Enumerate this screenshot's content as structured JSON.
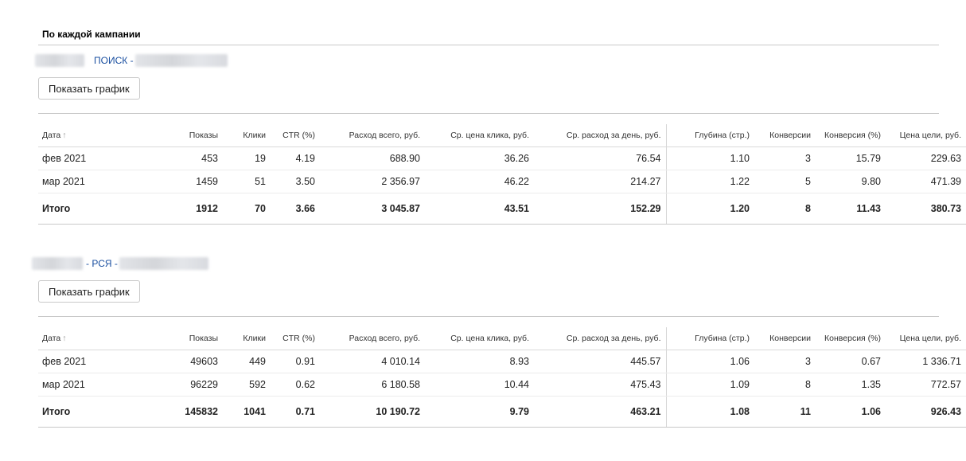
{
  "section_title": "По каждой кампании",
  "columns": [
    "Дата",
    "Показы",
    "Клики",
    "CTR (%)",
    "Расход всего, руб.",
    "Ср. цена клика, руб.",
    "Ср. расход за день, руб.",
    "Глубина (стр.)",
    "Конверсии",
    "Конверсия (%)",
    "Цена цели, руб."
  ],
  "sort_arrow": "↑",
  "show_chart_label": "Показать график",
  "campaigns": [
    {
      "name_prefix": "ПОИСК -",
      "rows": [
        [
          "фев 2021",
          "453",
          "19",
          "4.19",
          "688.90",
          "36.26",
          "76.54",
          "1.10",
          "3",
          "15.79",
          "229.63"
        ],
        [
          "мар 2021",
          "1459",
          "51",
          "3.50",
          "2 356.97",
          "46.22",
          "214.27",
          "1.22",
          "5",
          "9.80",
          "471.39"
        ]
      ],
      "total": [
        "Итого",
        "1912",
        "70",
        "3.66",
        "3 045.87",
        "43.51",
        "152.29",
        "1.20",
        "8",
        "11.43",
        "380.73"
      ]
    },
    {
      "name_prefix": "- РСЯ -",
      "rows": [
        [
          "фев 2021",
          "49603",
          "449",
          "0.91",
          "4 010.14",
          "8.93",
          "445.57",
          "1.06",
          "3",
          "0.67",
          "1 336.71"
        ],
        [
          "мар 2021",
          "96229",
          "592",
          "0.62",
          "6 180.58",
          "10.44",
          "475.43",
          "1.09",
          "8",
          "1.35",
          "772.57"
        ]
      ],
      "total": [
        "Итого",
        "145832",
        "1041",
        "0.71",
        "10 190.72",
        "9.79",
        "463.21",
        "1.08",
        "11",
        "1.06",
        "926.43"
      ]
    }
  ]
}
